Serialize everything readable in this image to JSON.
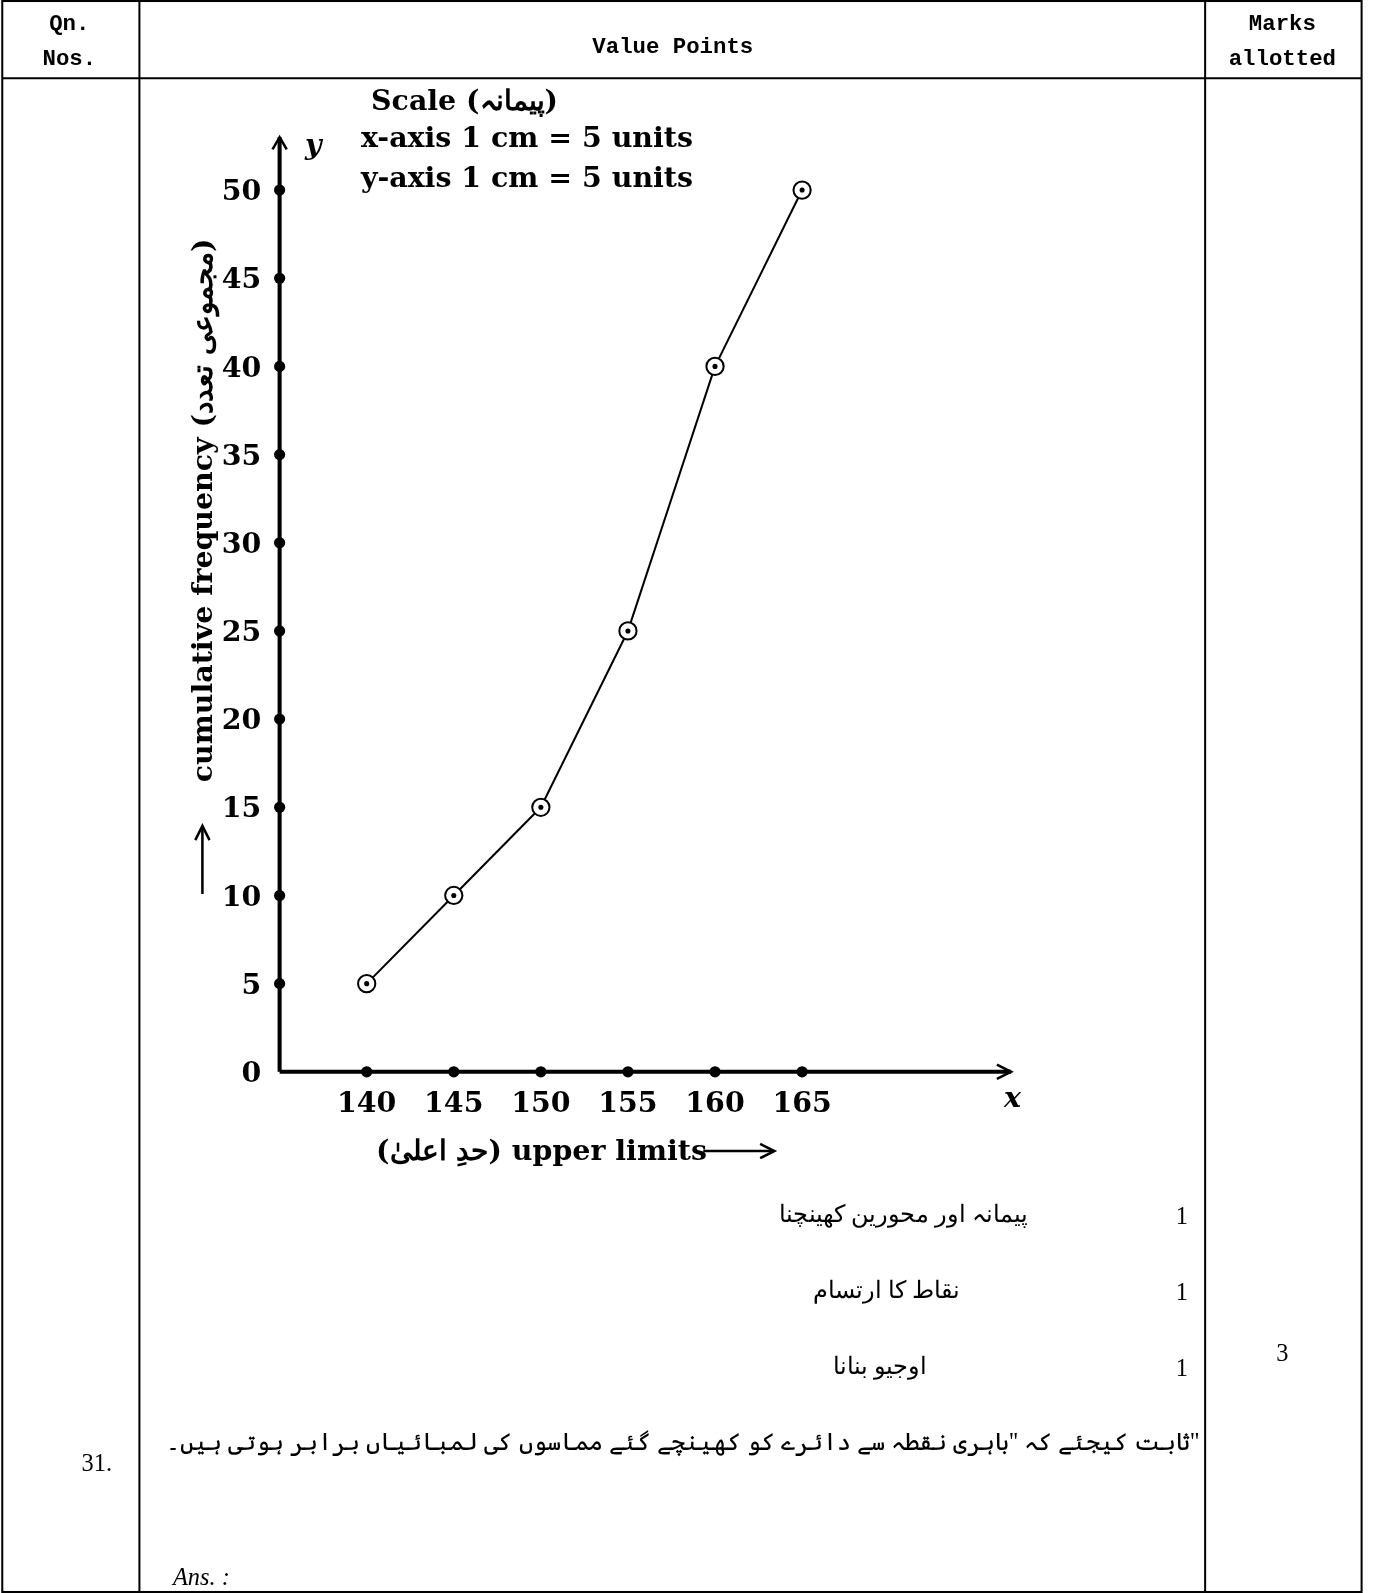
{
  "chart_data": {
    "type": "line",
    "title": "Scale (پیمانہ)",
    "xlabel": "(حدِ اعلیٰ) upper limits",
    "ylabel": "cumulative frequency (مجموعی تعدد)",
    "x": [
      140,
      145,
      150,
      155,
      160,
      165
    ],
    "values": [
      5,
      10,
      15,
      25,
      40,
      50
    ],
    "color": "#000000",
    "marker": "circle",
    "line_style": "solid",
    "xlim": [
      135,
      177
    ],
    "ylim": [
      0,
      53
    ],
    "xticks": [
      140,
      145,
      150,
      155,
      160,
      165
    ],
    "yticks": [
      0,
      5,
      10,
      15,
      20,
      25,
      30,
      35,
      40,
      45,
      50
    ],
    "annotations": [
      "x-axis 1 cm = 5 units",
      "y-axis 1 cm = 5 units",
      "y",
      "x",
      "Qn.",
      "Nos.",
      "Value Points",
      "Marks",
      "allotted",
      "1",
      "پیمانہ اور محورین کھینچنا",
      "1",
      "نقاط کا ارتسام",
      "1",
      "اوجیو بنانا",
      "3",
      "ثابت کیجئے کہ ''باہری نقطہ سے دائرے کو کھینچے گئے مماسوں کی لمبائیاں برابر ہوتی ہیں۔''",
      "31.",
      "Ans. :"
    ]
  }
}
